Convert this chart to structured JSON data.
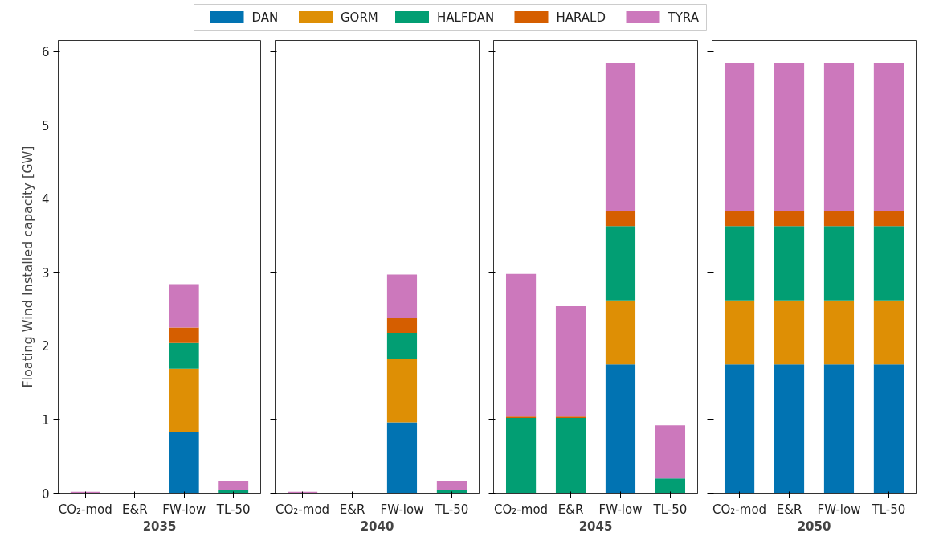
{
  "chart_data": [
    {
      "type": "bar",
      "stacked": true,
      "xlabel": "2035",
      "ylabel": "Floating Wind Installed capacity [GW]",
      "legend": "top",
      "grid": false,
      "categories": [
        "CO₂-mod",
        "E&R",
        "FW-low",
        "TL-50"
      ],
      "ylim": [
        0,
        6.15
      ],
      "yticks": [
        0,
        1,
        2,
        3,
        4,
        5,
        6
      ],
      "series": [
        {
          "name": "DAN",
          "color": "#0173b2",
          "values": [
            0,
            0,
            0.83,
            0
          ]
        },
        {
          "name": "GORM",
          "color": "#de8f05",
          "values": [
            0,
            0,
            0.86,
            0
          ]
        },
        {
          "name": "HALFDAN",
          "color": "#029e73",
          "values": [
            0,
            0,
            0.35,
            0.04
          ]
        },
        {
          "name": "HARALD",
          "color": "#d55e00",
          "values": [
            0,
            0,
            0.21,
            0
          ]
        },
        {
          "name": "TYRA",
          "color": "#cc78bc",
          "values": [
            0.02,
            0,
            0.59,
            0.13
          ]
        }
      ]
    },
    {
      "type": "bar",
      "stacked": true,
      "xlabel": "2040",
      "grid": false,
      "tick_labels": "x",
      "categories": [
        "CO₂-mod",
        "E&R",
        "FW-low",
        "TL-50"
      ],
      "ylim": [
        0,
        6.15
      ],
      "yticks": [
        0,
        1,
        2,
        3,
        4,
        5,
        6
      ],
      "series": [
        {
          "color": "#0173b2",
          "values": [
            0,
            0,
            0.96,
            0
          ]
        },
        {
          "color": "#de8f05",
          "values": [
            0,
            0,
            0.87,
            0
          ]
        },
        {
          "color": "#029e73",
          "values": [
            0,
            0,
            0.35,
            0.04
          ]
        },
        {
          "color": "#d55e00",
          "values": [
            0,
            0,
            0.2,
            0
          ]
        },
        {
          "color": "#cc78bc",
          "values": [
            0.02,
            0,
            0.59,
            0.13
          ]
        }
      ]
    },
    {
      "type": "bar",
      "stacked": true,
      "xlabel": "2045",
      "grid": false,
      "tick_labels": "x",
      "categories": [
        "CO₂-mod",
        "E&R",
        "FW-low",
        "TL-50"
      ],
      "ylim": [
        0,
        6.15
      ],
      "yticks": [
        0,
        1,
        2,
        3,
        4,
        5,
        6
      ],
      "series": [
        {
          "color": "#0173b2",
          "values": [
            0,
            0,
            1.75,
            0
          ]
        },
        {
          "color": "#de8f05",
          "values": [
            0,
            0,
            0.87,
            0
          ]
        },
        {
          "color": "#029e73",
          "values": [
            1.02,
            1.02,
            1.01,
            0.2
          ]
        },
        {
          "color": "#d55e00",
          "values": [
            0.02,
            0.02,
            0.2,
            0
          ]
        },
        {
          "color": "#cc78bc",
          "values": [
            1.94,
            1.5,
            2.02,
            0.72
          ]
        }
      ]
    },
    {
      "type": "bar",
      "stacked": true,
      "xlabel": "2050",
      "grid": false,
      "tick_labels": "x",
      "categories": [
        "CO₂-mod",
        "E&R",
        "FW-low",
        "TL-50"
      ],
      "ylim": [
        0,
        6.15
      ],
      "yticks": [
        0,
        1,
        2,
        3,
        4,
        5,
        6
      ],
      "series": [
        {
          "color": "#0173b2",
          "values": [
            1.75,
            1.75,
            1.75,
            1.75
          ]
        },
        {
          "color": "#de8f05",
          "values": [
            0.87,
            0.87,
            0.87,
            0.87
          ]
        },
        {
          "color": "#029e73",
          "values": [
            1.01,
            1.01,
            1.01,
            1.01
          ]
        },
        {
          "color": "#d55e00",
          "values": [
            0.2,
            0.2,
            0.2,
            0.2
          ]
        },
        {
          "color": "#cc78bc",
          "values": [
            2.02,
            2.02,
            2.02,
            2.02
          ]
        }
      ]
    }
  ]
}
